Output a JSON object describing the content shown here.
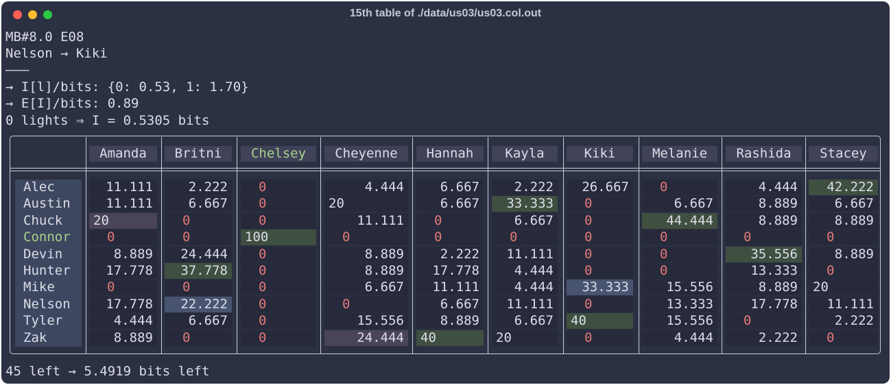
{
  "window": {
    "title": "15th table of ./data/us03/us03.col.out"
  },
  "info_lines": [
    "MB#8.0 E08",
    "Nelson → Kiki",
    "———",
    "→ I[l]/bits: {0: 0.53, 1: 1.70}",
    "→ E[I]/bits: 0.89",
    "0 lights ⇒ I = 0.5305 bits"
  ],
  "footer": "45 left → 5.4919 bits left",
  "colors": {
    "zero": "#e27878",
    "highlight_green": "#3f4f40",
    "highlight_purple": "#4a4458",
    "highlight_blue": "#485470",
    "chelsey_connor": "#a6d189"
  },
  "table": {
    "columns": [
      "Amanda",
      "Britni",
      "Chelsey",
      "Cheyenne",
      "Hannah",
      "Kayla",
      "Kiki",
      "Melanie",
      "Rashida",
      "Stacey"
    ],
    "rows": [
      {
        "name": "Alec",
        "cells": [
          "11.111",
          "2.222",
          "0",
          "4.444",
          "6.667",
          "2.222",
          "26.667",
          "0",
          "4.444",
          "42.222"
        ]
      },
      {
        "name": "Austin",
        "cells": [
          "11.111",
          "6.667",
          "0",
          "20",
          "6.667",
          "33.333",
          "0",
          "6.667",
          "8.889",
          "6.667"
        ]
      },
      {
        "name": "Chuck",
        "cells": [
          "20",
          "0",
          "0",
          "11.111",
          "0",
          "6.667",
          "0",
          "44.444",
          "8.889",
          "8.889"
        ]
      },
      {
        "name": "Connor",
        "cells": [
          "0",
          "0",
          "100",
          "0",
          "0",
          "0",
          "0",
          "0",
          "0",
          "0"
        ]
      },
      {
        "name": "Devin",
        "cells": [
          "8.889",
          "24.444",
          "0",
          "8.889",
          "2.222",
          "11.111",
          "0",
          "0",
          "35.556",
          "8.889"
        ]
      },
      {
        "name": "Hunter",
        "cells": [
          "17.778",
          "37.778",
          "0",
          "8.889",
          "17.778",
          "4.444",
          "0",
          "0",
          "13.333",
          "0"
        ]
      },
      {
        "name": "Mike",
        "cells": [
          "0",
          "0",
          "0",
          "6.667",
          "11.111",
          "4.444",
          "33.333",
          "15.556",
          "8.889",
          "20"
        ]
      },
      {
        "name": "Nelson",
        "cells": [
          "17.778",
          "22.222",
          "0",
          "0",
          "6.667",
          "11.111",
          "0",
          "13.333",
          "17.778",
          "11.111"
        ]
      },
      {
        "name": "Tyler",
        "cells": [
          "4.444",
          "6.667",
          "0",
          "15.556",
          "8.889",
          "6.667",
          "40",
          "15.556",
          "0",
          "2.222"
        ]
      },
      {
        "name": "Zak",
        "cells": [
          "8.889",
          "0",
          "0",
          "24.444",
          "40",
          "20",
          "0",
          "4.444",
          "2.222",
          "0"
        ]
      }
    ]
  }
}
